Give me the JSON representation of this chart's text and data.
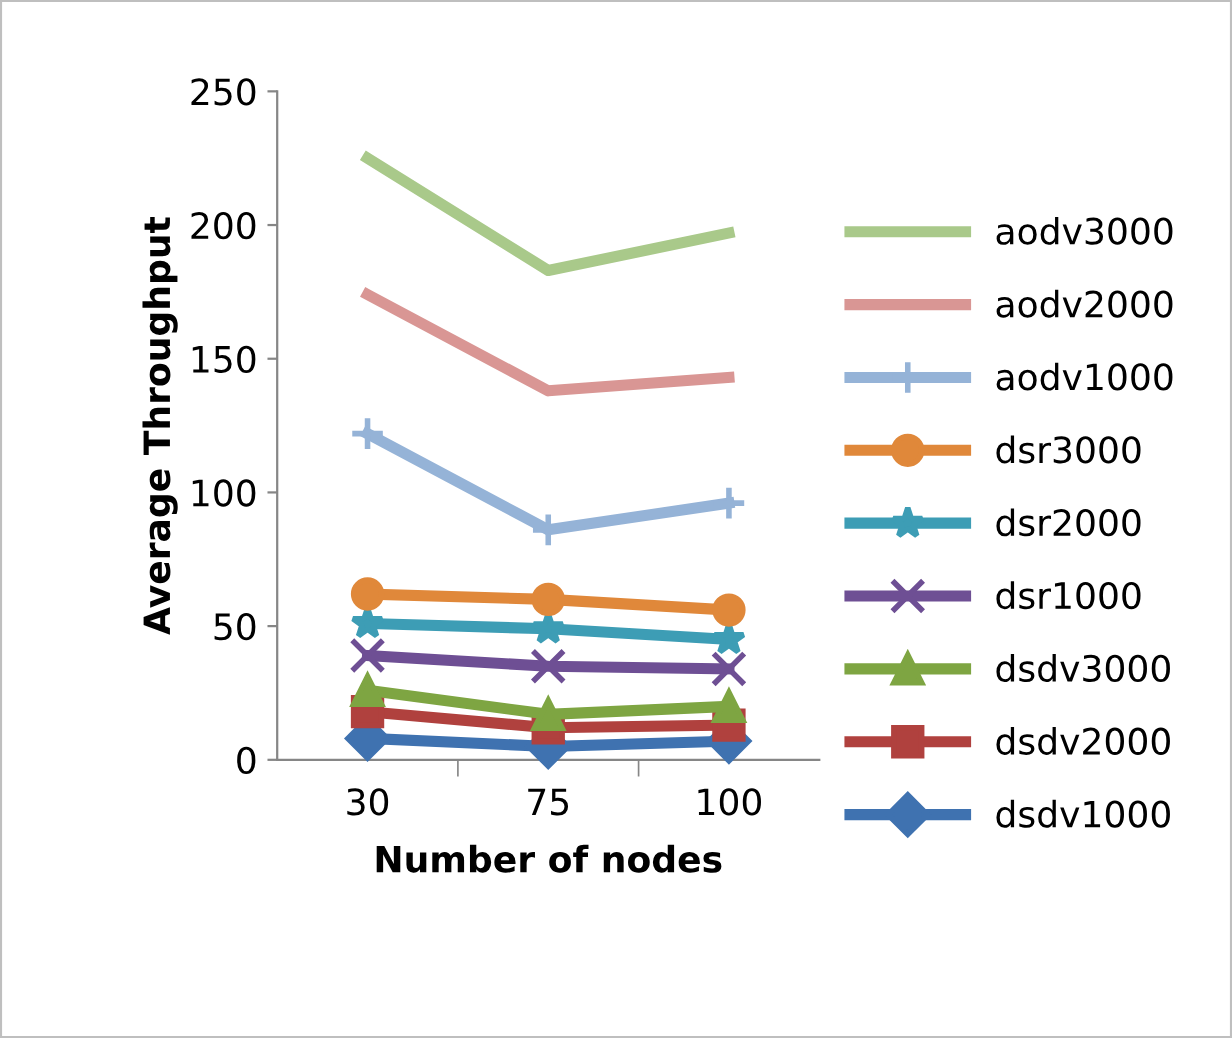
{
  "chart_data": {
    "type": "line",
    "xlabel": "Number of nodes",
    "ylabel": "Average Throughput",
    "categories": [
      "30",
      "75",
      "100"
    ],
    "ylim": [
      0,
      250
    ],
    "yticks": [
      0,
      50,
      100,
      150,
      200,
      250
    ],
    "grid": false,
    "legend": "right",
    "series": [
      {
        "name": "aodv3000",
        "color": "#a9c98a",
        "marker": "none",
        "values": [
          225,
          183,
          197
        ]
      },
      {
        "name": "aodv2000",
        "color": "#d99694",
        "marker": "none",
        "values": [
          174,
          138,
          143
        ]
      },
      {
        "name": "aodv1000",
        "color": "#95b3d7",
        "marker": "plus",
        "values": [
          122,
          86,
          96
        ]
      },
      {
        "name": "dsr3000",
        "color": "#e0883a",
        "marker": "circle",
        "values": [
          62,
          60,
          56
        ]
      },
      {
        "name": "dsr2000",
        "color": "#3d9db5",
        "marker": "star",
        "values": [
          51,
          49,
          45
        ]
      },
      {
        "name": "dsr1000",
        "color": "#6e4f94",
        "marker": "cross",
        "values": [
          39,
          35,
          34
        ]
      },
      {
        "name": "dsdv3000",
        "color": "#7ea542",
        "marker": "triangle",
        "values": [
          26,
          17,
          20
        ]
      },
      {
        "name": "dsdv2000",
        "color": "#b0413e",
        "marker": "square",
        "values": [
          18,
          12,
          13
        ]
      },
      {
        "name": "dsdv1000",
        "color": "#3f72b0",
        "marker": "diamond",
        "values": [
          8,
          5,
          7
        ]
      }
    ]
  }
}
